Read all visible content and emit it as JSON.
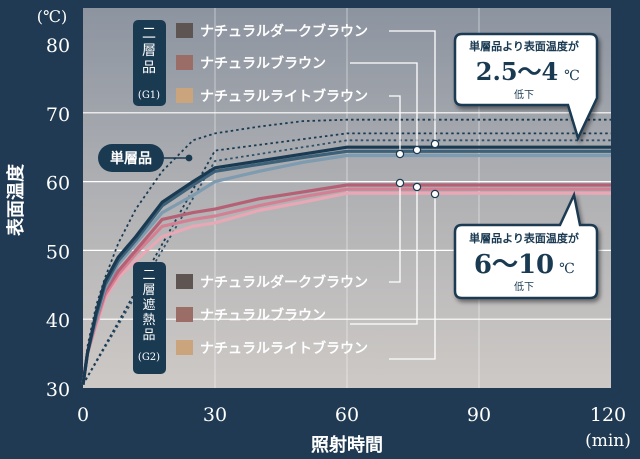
{
  "chart_data": {
    "type": "line",
    "xlabel": "照射時間",
    "xunit": "(min)",
    "ylabel": "表面温度",
    "yunit": "(℃)",
    "xlim": [
      0,
      120
    ],
    "ylim": [
      30,
      80
    ],
    "xticks": [
      0,
      30,
      60,
      90,
      120
    ],
    "yticks": [
      30,
      40,
      50,
      60,
      70,
      80
    ],
    "colors": {
      "background": "#1f3a52",
      "dark_brown": "#5e5552",
      "brown": "#9a6e66",
      "light_brown": "#c9a47c",
      "single": "#1a3a52",
      "callout_fill": "#1a3a52"
    },
    "series": [
      {
        "name": "単層品",
        "style": "dotted",
        "color": "#1a3a52",
        "x": [
          0,
          1,
          3,
          5,
          8,
          12,
          18,
          25,
          30,
          40,
          50,
          60,
          75,
          90,
          120
        ],
        "y": [
          30.5,
          36,
          42,
          46,
          51,
          56,
          61.5,
          66,
          67,
          68,
          68.8,
          69,
          69,
          69,
          69
        ]
      },
      {
        "name": "G1 ナチュラルダークブラウン",
        "style": "solid",
        "color": "#1a3a52",
        "x": [
          0,
          1,
          3,
          5,
          8,
          12,
          18,
          25,
          30,
          40,
          50,
          60,
          75,
          90,
          120
        ],
        "y": [
          30.5,
          35,
          41,
          45.5,
          49,
          52,
          57,
          60,
          62,
          63,
          64,
          65,
          65,
          65,
          65
        ]
      },
      {
        "name": "G1 ナチュラルブラウン",
        "style": "solid",
        "color": "#3d6178",
        "x": [
          0,
          1,
          3,
          5,
          8,
          12,
          18,
          25,
          30,
          40,
          50,
          60,
          75,
          90,
          120
        ],
        "y": [
          30.5,
          35,
          40.5,
          45,
          48.5,
          51.5,
          56.5,
          59.5,
          61.5,
          62.5,
          63.5,
          64.4,
          64.4,
          64.4,
          64.4
        ]
      },
      {
        "name": "G1 ナチュラルライトブラウン",
        "style": "solid",
        "color": "#7e9bb0",
        "x": [
          0,
          1,
          3,
          5,
          8,
          12,
          18,
          25,
          30,
          40,
          50,
          60,
          75,
          90,
          120
        ],
        "y": [
          30.5,
          35,
          40,
          44.5,
          48,
          51,
          55.5,
          58,
          60,
          61.5,
          62.8,
          63.8,
          63.8,
          63.8,
          63.8
        ]
      },
      {
        "name": "G2 ナチュラルダークブラウン",
        "style": "solid",
        "color": "#b56075",
        "x": [
          0,
          1,
          3,
          5,
          8,
          12,
          18,
          25,
          30,
          40,
          50,
          60,
          75,
          90,
          120
        ],
        "y": [
          30.5,
          35,
          40,
          44,
          47,
          50,
          54.5,
          55.5,
          56,
          57.5,
          58.5,
          59.5,
          59.5,
          59.5,
          59.5
        ]
      },
      {
        "name": "G2 ナチュラルブラウン",
        "style": "solid",
        "color": "#d48094",
        "x": [
          0,
          1,
          3,
          5,
          8,
          12,
          18,
          25,
          30,
          40,
          50,
          60,
          75,
          90,
          120
        ],
        "y": [
          30.5,
          35,
          39.5,
          43.5,
          46.5,
          49.5,
          53.5,
          54.5,
          55,
          56.5,
          57.8,
          58.9,
          58.9,
          58.9,
          58.9
        ]
      },
      {
        "name": "G2 ナチュラルライトブラウン",
        "style": "solid",
        "color": "#e8a8b5",
        "x": [
          0,
          1,
          3,
          5,
          8,
          12,
          18,
          25,
          30,
          40,
          50,
          60,
          75,
          90,
          120
        ],
        "y": [
          30.5,
          35,
          39,
          43,
          46,
          48.5,
          52,
          53.5,
          54,
          55.8,
          57,
          58.3,
          58.3,
          58.3,
          58.3
        ]
      },
      {
        "name": "",
        "style": "dotted",
        "color": "#1a3a52",
        "x": [
          0,
          30,
          60,
          90,
          120
        ],
        "y": [
          30.5,
          64.5,
          67,
          67,
          67
        ]
      },
      {
        "name": "",
        "style": "dotted",
        "color": "#2e5068",
        "x": [
          0,
          30,
          60,
          90,
          120
        ],
        "y": [
          30.5,
          63,
          66,
          66,
          66
        ]
      }
    ],
    "groups": [
      {
        "heading": "二層品",
        "code": "(G1)",
        "items": [
          {
            "label": "ナチュラルダークブラウン",
            "color": "#5e5552"
          },
          {
            "label": "ナチュラルブラウン",
            "color": "#9a6e66"
          },
          {
            "label": "ナチュラルライトブラウン",
            "color": "#c9a47c"
          }
        ]
      },
      {
        "heading": "二層遮熱品",
        "code": "(G2)",
        "items": [
          {
            "label": "ナチュラルダークブラウン",
            "color": "#5e5552"
          },
          {
            "label": "ナチュラルブラウン",
            "color": "#9a6e66"
          },
          {
            "label": "ナチュラルライトブラウン",
            "color": "#c9a47c"
          }
        ]
      }
    ],
    "single_label": "単層品",
    "callouts": [
      {
        "title": "単層品より表面温度が",
        "value": "2.5〜4",
        "unit": "℃",
        "suffix": "低下"
      },
      {
        "title": "単層品より表面温度が",
        "value": "6〜10",
        "unit": "℃",
        "suffix": "低下"
      }
    ]
  }
}
